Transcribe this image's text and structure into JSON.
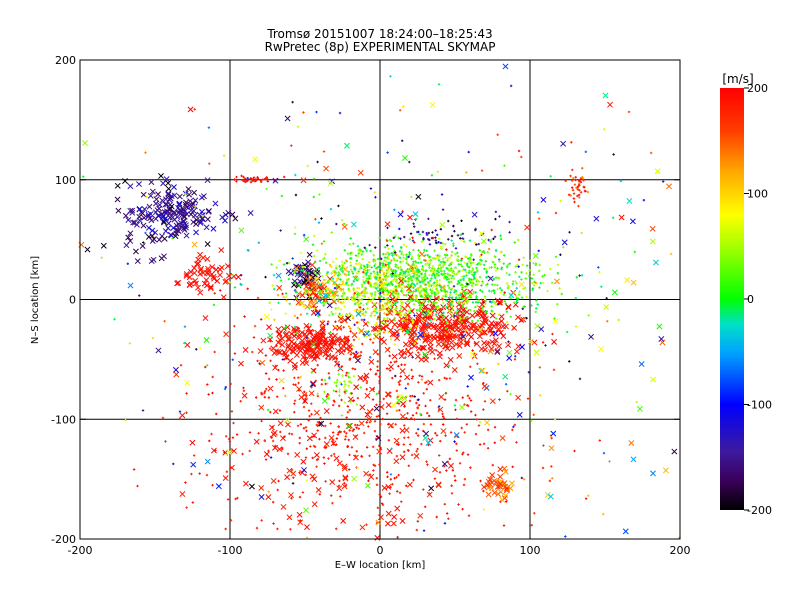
{
  "chart_data": {
    "type": "scatter",
    "title": "Tromsø 20151007 18:24:00–18:25:43",
    "subtitle": "RwPretec (8p) EXPERIMENTAL SKYMAP",
    "xlabel": "E–W location [km]",
    "ylabel": "N–S location [km]",
    "xlim": [
      -200,
      200
    ],
    "ylim": [
      -200,
      200
    ],
    "x_ticks": [
      -200,
      -100,
      0,
      100,
      200
    ],
    "y_ticks": [
      -200,
      -100,
      0,
      100,
      200
    ],
    "grid": true,
    "colorbar": {
      "label": "[m/s]",
      "range": [
        -200,
        200
      ],
      "ticks": [
        200,
        100,
        0,
        -100,
        -200
      ]
    },
    "clusters": [
      {
        "x": -135,
        "y": 72,
        "sx": 14,
        "sy": 10,
        "n": 150,
        "vmin": -180,
        "vmax": -110,
        "marker": "x"
      },
      {
        "x": -148,
        "y": 60,
        "sx": 20,
        "sy": 20,
        "n": 40,
        "vmin": -200,
        "vmax": -150,
        "marker": "x"
      },
      {
        "x": -115,
        "y": 20,
        "sx": 10,
        "sy": 7,
        "n": 50,
        "vmin": 180,
        "vmax": 200,
        "marker": "x"
      },
      {
        "x": -50,
        "y": 18,
        "sx": 5,
        "sy": 8,
        "n": 50,
        "vmin": -200,
        "vmax": -130,
        "marker": "x"
      },
      {
        "x": -42,
        "y": 5,
        "sx": 6,
        "sy": 8,
        "n": 50,
        "vmin": 110,
        "vmax": 200,
        "marker": "x"
      },
      {
        "x": -48,
        "y": -38,
        "sx": 13,
        "sy": 8,
        "n": 160,
        "vmin": 180,
        "vmax": 200,
        "marker": "x"
      },
      {
        "x": 45,
        "y": -25,
        "sx": 24,
        "sy": 13,
        "n": 320,
        "vmin": 180,
        "vmax": 200,
        "marker": "x"
      },
      {
        "x": 25,
        "y": 15,
        "sx": 38,
        "sy": 16,
        "n": 1300,
        "vmin": -20,
        "vmax": 70,
        "marker": "+"
      },
      {
        "x": -5,
        "y": 0,
        "sx": 22,
        "sy": 18,
        "n": 300,
        "vmin": 40,
        "vmax": 130,
        "marker": "+"
      },
      {
        "x": -25,
        "y": -75,
        "sx": 7,
        "sy": 8,
        "n": 40,
        "vmin": 20,
        "vmax": 60,
        "marker": "+"
      },
      {
        "x": -85,
        "y": 100,
        "sx": 8,
        "sy": 1.5,
        "n": 40,
        "vmin": 180,
        "vmax": 200,
        "marker": "+"
      },
      {
        "x": 132,
        "y": 93,
        "sx": 3,
        "sy": 6,
        "n": 40,
        "vmin": 130,
        "vmax": 200,
        "marker": "+"
      },
      {
        "x": 80,
        "y": -155,
        "sx": 6,
        "sy": 6,
        "n": 40,
        "vmin": 110,
        "vmax": 180,
        "marker": "x"
      },
      {
        "x": 40,
        "y": 55,
        "sx": 20,
        "sy": 8,
        "n": 60,
        "vmin": -200,
        "vmax": -110,
        "marker": "+"
      },
      {
        "x": -10,
        "y": -100,
        "sx": 55,
        "sy": 50,
        "n": 600,
        "vmin": 170,
        "vmax": 200,
        "marker": "+"
      },
      {
        "x": -30,
        "y": -120,
        "sx": 40,
        "sy": 50,
        "n": 150,
        "vmin": 170,
        "vmax": 200,
        "marker": "x"
      },
      {
        "x": 30,
        "y": 10,
        "sx": 95,
        "sy": 95,
        "n": 320,
        "vmin": -200,
        "vmax": 200,
        "marker": "+"
      },
      {
        "x": 50,
        "y": -20,
        "sx": 110,
        "sy": 100,
        "n": 200,
        "vmin": -200,
        "vmax": 200,
        "marker": "x"
      }
    ]
  }
}
